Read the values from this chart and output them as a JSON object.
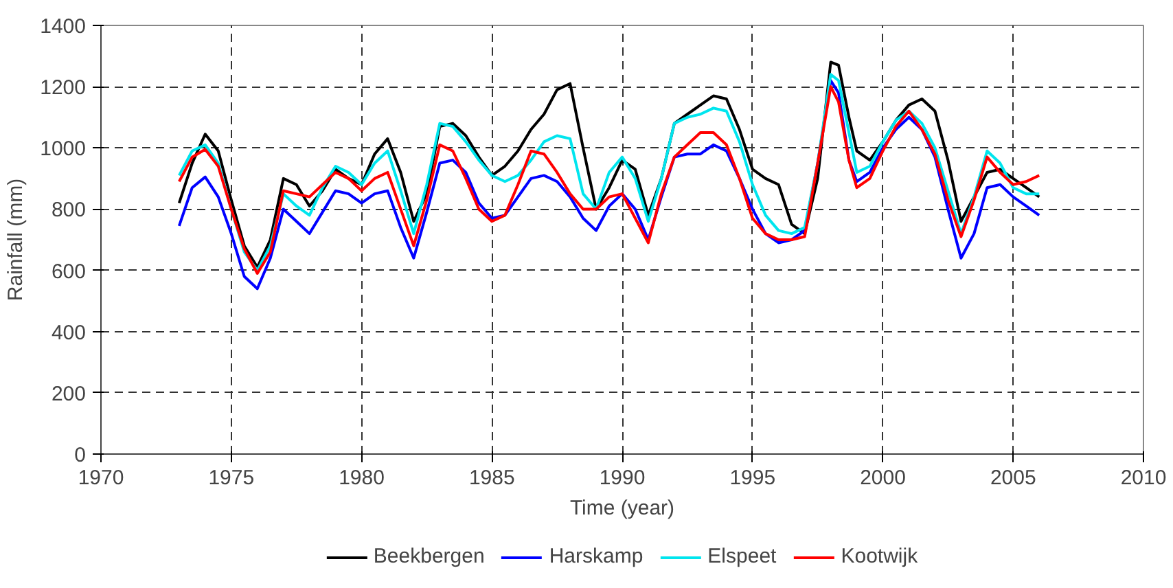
{
  "chart_data": {
    "type": "line",
    "xlabel": "Time (year)",
    "ylabel": "Rainfall (mm)",
    "xlim": [
      1970,
      2010
    ],
    "xticks": [
      1970,
      1975,
      1980,
      1985,
      1990,
      1995,
      2000,
      2005,
      2010
    ],
    "ylim": [
      0,
      1400
    ],
    "yticks": [
      0,
      200,
      400,
      600,
      800,
      1000,
      1200,
      1400
    ],
    "grid": true,
    "legend": "bottom",
    "marker": "none",
    "line_style": "solid",
    "x": [
      1973,
      1973.5,
      1974,
      1974.5,
      1975,
      1975.5,
      1976,
      1976.5,
      1977,
      1977.5,
      1978,
      1978.5,
      1979,
      1979.5,
      1980,
      1980.5,
      1981,
      1981.5,
      1982,
      1982.5,
      1983,
      1983.5,
      1984,
      1984.5,
      1985,
      1985.5,
      1986,
      1986.5,
      1987,
      1987.5,
      1988,
      1988.5,
      1989,
      1989.5,
      1990,
      1990.5,
      1991,
      1991.5,
      1992,
      1992.5,
      1993,
      1993.5,
      1994,
      1994.5,
      1995,
      1995.5,
      1996,
      1996.5,
      1997,
      1997.5,
      1998,
      1998.3,
      1998.7,
      1999,
      1999.5,
      2000,
      2000.5,
      2001,
      2001.5,
      2002,
      2002.5,
      2003,
      2003.5,
      2004,
      2004.5,
      2005,
      2005.5,
      2006
    ],
    "series": [
      {
        "name": "Beekbergen",
        "color": "#000000",
        "values": [
          820,
          950,
          1045,
          990,
          830,
          680,
          610,
          700,
          900,
          880,
          810,
          860,
          930,
          900,
          880,
          980,
          1030,
          920,
          760,
          850,
          1070,
          1080,
          1040,
          970,
          910,
          940,
          990,
          1060,
          1110,
          1190,
          1210,
          1000,
          800,
          870,
          960,
          930,
          780,
          900,
          1080,
          1110,
          1140,
          1170,
          1160,
          1060,
          930,
          900,
          880,
          750,
          720,
          900,
          1280,
          1270,
          1100,
          990,
          960,
          1020,
          1090,
          1140,
          1160,
          1120,
          960,
          760,
          840,
          920,
          930,
          900,
          870,
          840
        ]
      },
      {
        "name": "Harskamp",
        "color": "#0000ff",
        "values": [
          745,
          870,
          905,
          840,
          720,
          580,
          540,
          640,
          800,
          760,
          720,
          790,
          860,
          850,
          820,
          850,
          860,
          740,
          640,
          790,
          950,
          960,
          920,
          820,
          770,
          780,
          840,
          900,
          910,
          890,
          840,
          770,
          730,
          810,
          850,
          800,
          700,
          840,
          970,
          980,
          980,
          1010,
          990,
          900,
          800,
          720,
          690,
          700,
          730,
          950,
          1220,
          1180,
          960,
          890,
          920,
          1000,
          1060,
          1100,
          1060,
          970,
          800,
          640,
          720,
          870,
          880,
          840,
          810,
          780
        ]
      },
      {
        "name": "Elspeet",
        "color": "#00e5ee",
        "values": [
          910,
          990,
          1010,
          950,
          800,
          660,
          600,
          680,
          850,
          810,
          780,
          870,
          940,
          920,
          880,
          950,
          990,
          860,
          720,
          880,
          1080,
          1070,
          1020,
          960,
          910,
          890,
          910,
          960,
          1020,
          1040,
          1030,
          850,
          800,
          920,
          970,
          900,
          760,
          900,
          1080,
          1100,
          1110,
          1130,
          1120,
          1020,
          880,
          780,
          730,
          720,
          740,
          950,
          1240,
          1220,
          1050,
          920,
          940,
          1020,
          1090,
          1120,
          1080,
          1000,
          860,
          720,
          840,
          990,
          950,
          870,
          850,
          850
        ]
      },
      {
        "name": "Kootwijk",
        "color": "#ff0000",
        "values": [
          890,
          970,
          995,
          940,
          800,
          670,
          590,
          660,
          860,
          850,
          840,
          880,
          920,
          900,
          860,
          900,
          920,
          800,
          680,
          830,
          1010,
          990,
          900,
          800,
          760,
          780,
          880,
          990,
          980,
          920,
          850,
          800,
          800,
          840,
          850,
          770,
          690,
          850,
          970,
          1010,
          1050,
          1050,
          1010,
          900,
          770,
          720,
          700,
          700,
          710,
          950,
          1200,
          1150,
          960,
          870,
          900,
          990,
          1070,
          1120,
          1060,
          980,
          830,
          710,
          830,
          970,
          920,
          880,
          890,
          910
        ]
      }
    ]
  }
}
